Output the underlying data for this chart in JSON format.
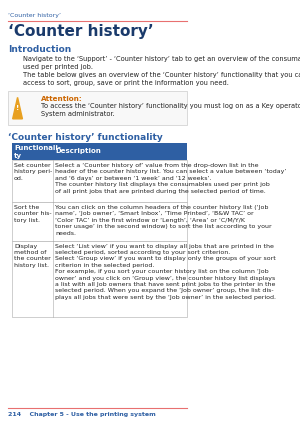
{
  "page_label": "‘Counter history’",
  "page_title": "‘Counter history’",
  "section1_title": "Introduction",
  "section1_body1": "Navigate to the ‘Support’ - ‘Counter history’ tab to get an overview of the consumables\nused per printed job.",
  "section1_body2": "The table below gives an overview of the ‘Counter history’ functionality that you can\naccess to sort, group, save or print the information you need.",
  "attention_label": "Attention:",
  "attention_body": "To access the ‘Counter history’ functionality you must log on as a Key operator or as a\nSystem administrator.",
  "section2_title": "‘Counter history’ functionality",
  "table_header": [
    "Functionali-\nty",
    "Description"
  ],
  "row1_col1": "Set counter\nhistory peri-\nod.",
  "row1_col2": "Select a ‘Counter history of’ value from the drop-down list in the\nheader of the counter history list. You can select a value between ‘today’\nand ‘6 days’ or between ‘1 week’ and ‘12 weeks’.\nThe counter history list displays the consumables used per print job\nof all print jobs that are printed during the selected period of time.",
  "row2_col1": "Sort the\ncounter his-\ntory list.",
  "row2_col2": "You can click on the column headers of the counter history list (‘Job\nname’, ‘Job owner’, ‘Smart Inbox’, ‘Time Printed’, ‘B&W TAC’ or\n‘Color TAC’ in the first window or ‘Length’, ‘Area’ or ‘C/M/Y/K\ntoner usage’ in the second window) to sort the list according to your\nneeds.",
  "row3_col1": "Display\nmethod of\nthe counter\nhistory list.",
  "row3_col2": "Select ‘List view’ if you want to display all jobs that are printed in the\nselected period, sorted according to your sort criterion.\nSelect ‘Group view’ if you want to display only the groups of your sort\ncriterion in the selected period.\nFor example, if you sort your counter history list on the column ‘Job\nowner’ and you click on ‘Group view’, the counter history list displays\na list with all Job owners that have sent print jobs to the printer in the\nselected period. When you expand the ‘Job owner’ group, the list dis-\nplays all jobs that were sent by the ‘Job owner’ in the selected period.",
  "footer_text": "214    Chapter 5 - Use the printing system",
  "bg_color": "#ffffff",
  "header_bg": "#2e5fa3",
  "header_fg": "#ffffff",
  "label_color": "#2e5fa3",
  "title_color": "#1a3a6b",
  "body_color": "#222222",
  "table_border": "#aaaaaa",
  "red_line_color": "#e87070",
  "attention_color": "#cc6600",
  "footer_color": "#2e5fa3",
  "triangle_color": "#e8a020"
}
